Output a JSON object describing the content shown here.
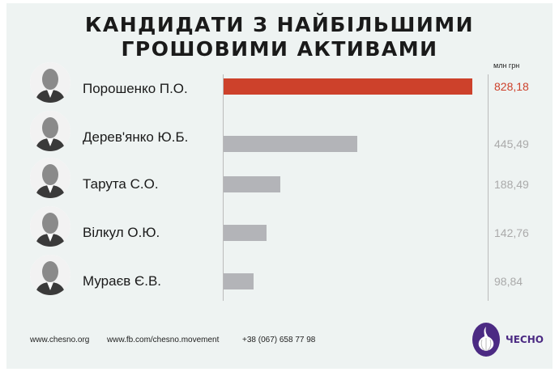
{
  "title_line1": "КАНДИДАТИ З НАЙБІЛЬШИМИ",
  "title_line2": "ГРОШОВИМИ АКТИВАМИ",
  "chart_data": {
    "type": "bar",
    "orientation": "horizontal",
    "unit": "млн грн",
    "categories": [
      "Порошенко П.О.",
      "Дерев'янко Ю.Б.",
      "Тарута С.О.",
      "Вілкул О.Ю.",
      "Мураєв Є.В."
    ],
    "values": [
      828.18,
      445.49,
      188.49,
      142.76,
      98.84
    ],
    "value_labels": [
      "828,18",
      "445,49",
      "188,49",
      "142,76",
      "98,84"
    ],
    "highlight_color": "#cd412b",
    "bar_color": "#b3b4b8",
    "highlight_index": 0
  },
  "footer": {
    "site": "www.chesno.org",
    "fb": "www.fb.com/chesno.movement",
    "phone": "+38 (067) 658 77 98",
    "logo_text": "ЧЕСНО",
    "logo_color": "#4b2a83"
  }
}
